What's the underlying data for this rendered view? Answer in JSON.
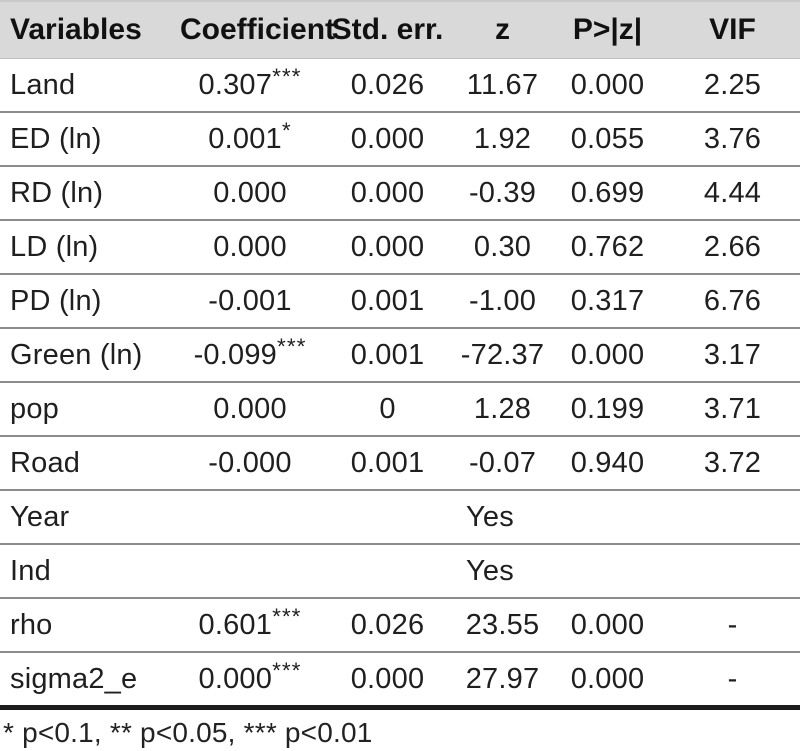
{
  "table": {
    "columns": [
      "Variables",
      "Coefficient",
      "Std. err.",
      "z",
      "P>|z|",
      "VIF"
    ],
    "rows": [
      {
        "variable": "Land",
        "cells": [
          "0.307***",
          "0.026",
          "11.67",
          "0.000",
          "2.25"
        ]
      },
      {
        "variable": "ED (ln)",
        "cells": [
          "0.001*",
          "0.000",
          "1.92",
          "0.055",
          "3.76"
        ]
      },
      {
        "variable": "RD (ln)",
        "cells": [
          "0.000",
          "0.000",
          "-0.39",
          "0.699",
          "4.44"
        ]
      },
      {
        "variable": "LD (ln)",
        "cells": [
          "0.000",
          "0.000",
          "0.30",
          "0.762",
          "2.66"
        ]
      },
      {
        "variable": "PD (ln)",
        "cells": [
          "-0.001",
          "0.001",
          "-1.00",
          "0.317",
          "6.76"
        ]
      },
      {
        "variable": "Green (ln)",
        "cells": [
          "-0.099***",
          "0.001",
          "-72.37",
          "0.000",
          "3.17"
        ]
      },
      {
        "variable": "pop",
        "cells": [
          "0.000",
          "0",
          "1.28",
          "0.199",
          "3.71"
        ]
      },
      {
        "variable": "Road",
        "cells": [
          "-0.000",
          "0.001",
          "-0.07",
          "0.940",
          "3.72"
        ]
      },
      {
        "variable": "Year",
        "span": "Yes"
      },
      {
        "variable": "Ind",
        "span": "Yes"
      },
      {
        "variable": "rho",
        "cells": [
          "0.601***",
          "0.026",
          "23.55",
          "0.000",
          "-"
        ]
      },
      {
        "variable": "sigma2_e",
        "cells": [
          "0.000***",
          "0.000",
          "27.97",
          "0.000",
          "-"
        ]
      }
    ],
    "footnote": "* p<0.1, ** p<0.05, *** p<0.01"
  },
  "colors": {
    "header_bg": "#d9d9d9",
    "row_separator": "#8c8c8c",
    "bottom_border": "#1c1c1c",
    "text": "#1f1f1f"
  }
}
